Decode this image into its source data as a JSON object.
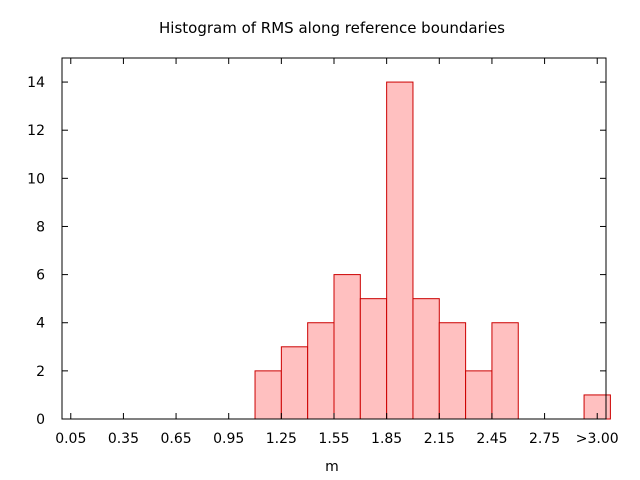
{
  "chart_data": {
    "type": "bar",
    "title": "Histogram of RMS along reference boundaries",
    "xlabel": "m",
    "ylabel": "",
    "xlim": [
      0.0,
      3.1
    ],
    "ylim": [
      0,
      15
    ],
    "x_ticks": [
      {
        "value": 0.05,
        "label": "0.05"
      },
      {
        "value": 0.35,
        "label": "0.35"
      },
      {
        "value": 0.65,
        "label": "0.65"
      },
      {
        "value": 0.95,
        "label": "0.95"
      },
      {
        "value": 1.25,
        "label": "1.25"
      },
      {
        "value": 1.55,
        "label": "1.55"
      },
      {
        "value": 1.85,
        "label": "1.85"
      },
      {
        "value": 2.15,
        "label": "2.15"
      },
      {
        "value": 2.45,
        "label": "2.45"
      },
      {
        "value": 2.75,
        "label": "2.75"
      },
      {
        "value": 3.05,
        "label": ">3.00"
      }
    ],
    "y_ticks": [
      0,
      2,
      4,
      6,
      8,
      10,
      12,
      14
    ],
    "bin_width": 0.15,
    "bins": [
      {
        "center": 1.175,
        "count": 2
      },
      {
        "center": 1.325,
        "count": 3
      },
      {
        "center": 1.475,
        "count": 4
      },
      {
        "center": 1.625,
        "count": 6
      },
      {
        "center": 1.775,
        "count": 5
      },
      {
        "center": 1.925,
        "count": 14
      },
      {
        "center": 2.075,
        "count": 5
      },
      {
        "center": 2.225,
        "count": 4
      },
      {
        "center": 2.375,
        "count": 2
      },
      {
        "center": 2.525,
        "count": 4
      },
      {
        "center": 3.05,
        "count": 1
      }
    ],
    "grid": false,
    "colors": {
      "bar_fill": "#ffc0c0",
      "bar_stroke": "#cc0000",
      "axis": "#000000"
    }
  }
}
